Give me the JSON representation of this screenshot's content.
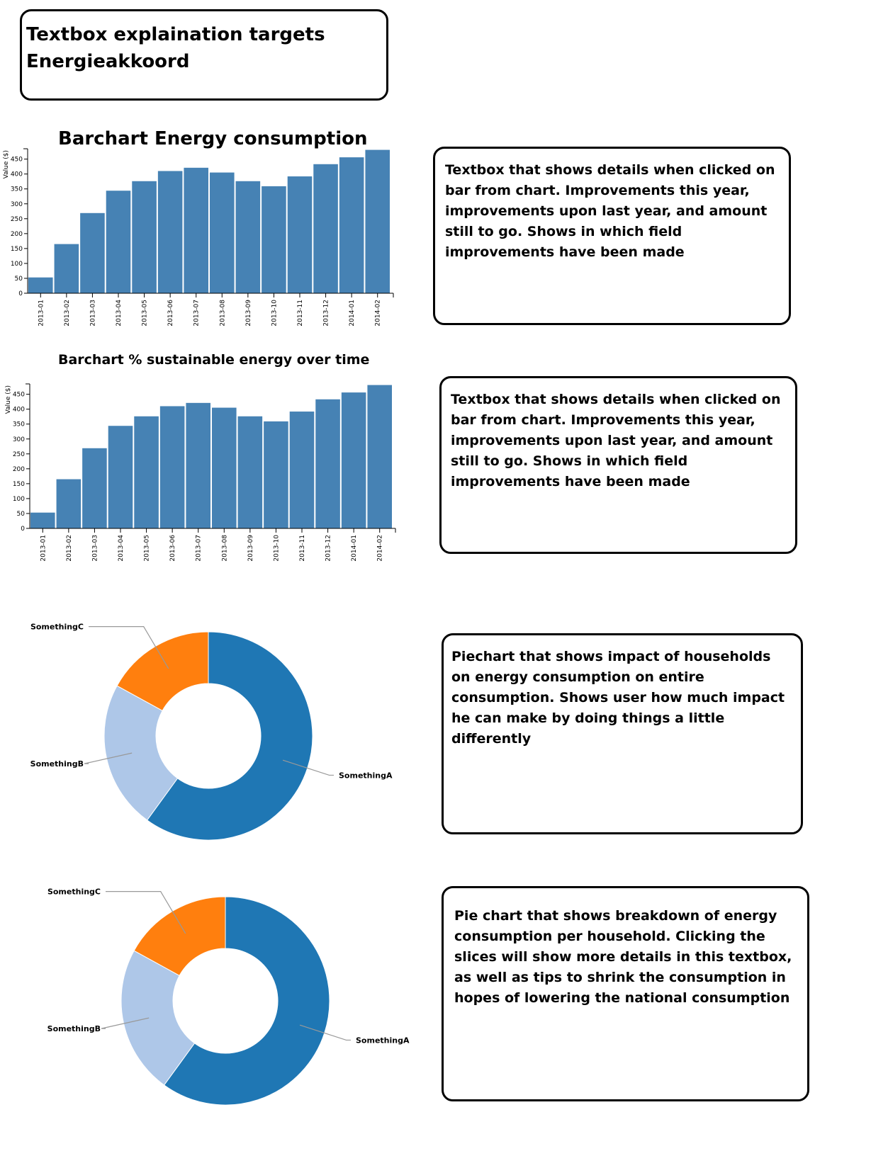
{
  "header": {
    "title": "Textbox explaination targets Energieakkoord"
  },
  "textboxes": {
    "bar1": "Textbox that shows details when clicked on bar from chart. Improvements this year, improvements upon last year, and amount still to go. Shows in which field improvements have been made",
    "bar2": "Textbox that shows details when clicked on bar from chart. Improvements this year, improvements upon last year, and amount still to go. Shows in which field improvements have been made",
    "pie1": "Piechart that shows impact of households on energy consumption on entire consumption. Shows user how much impact he can make by doing things a little differently",
    "pie2": "Pie chart that shows breakdown of energy consumption per household. Clicking the slices will show more details in this textbox, as well as tips to shrink the consumption in hopes of lowering the national consumption"
  },
  "colors": {
    "bar": "#4682b4",
    "sliceA": "#1f77b4",
    "sliceB": "#aec7e8",
    "sliceC": "#ff7f0e"
  },
  "chart_data": [
    {
      "type": "bar",
      "title": "Barchart Energy consumption",
      "ylabel": "Value ($)",
      "ylim": [
        0,
        480
      ],
      "yticks": [
        "0",
        "50",
        "100",
        "150",
        "200",
        "250",
        "300",
        "350",
        "400",
        "450"
      ],
      "categories": [
        "2013-01",
        "2013-02",
        "2013-03",
        "2013-04",
        "2013-05",
        "2013-06",
        "2013-07",
        "2013-08",
        "2013-09",
        "2013-10",
        "2013-11",
        "2013-12",
        "2014-01",
        "2014-02"
      ],
      "values": [
        53,
        165,
        269,
        344,
        376,
        410,
        421,
        405,
        376,
        359,
        392,
        433,
        456,
        481
      ]
    },
    {
      "type": "bar",
      "title": "Barchart % sustainable energy over time",
      "ylabel": "Value ($)",
      "ylim": [
        0,
        480
      ],
      "yticks": [
        "0",
        "50",
        "100",
        "150",
        "200",
        "250",
        "300",
        "350",
        "400",
        "450"
      ],
      "categories": [
        "2013-01",
        "2013-02",
        "2013-03",
        "2013-04",
        "2013-05",
        "2013-06",
        "2013-07",
        "2013-08",
        "2013-09",
        "2013-10",
        "2013-11",
        "2013-12",
        "2014-01",
        "2014-02"
      ],
      "values": [
        53,
        165,
        269,
        344,
        376,
        410,
        421,
        405,
        376,
        359,
        392,
        433,
        456,
        481
      ]
    },
    {
      "type": "pie",
      "donut": true,
      "slices": [
        {
          "label": "SomethingA",
          "value": 60
        },
        {
          "label": "SomethingB",
          "value": 23
        },
        {
          "label": "SomethingC",
          "value": 17
        }
      ]
    },
    {
      "type": "pie",
      "donut": true,
      "slices": [
        {
          "label": "SomethingA",
          "value": 60
        },
        {
          "label": "SomethingB",
          "value": 23
        },
        {
          "label": "SomethingC",
          "value": 17
        }
      ]
    }
  ]
}
